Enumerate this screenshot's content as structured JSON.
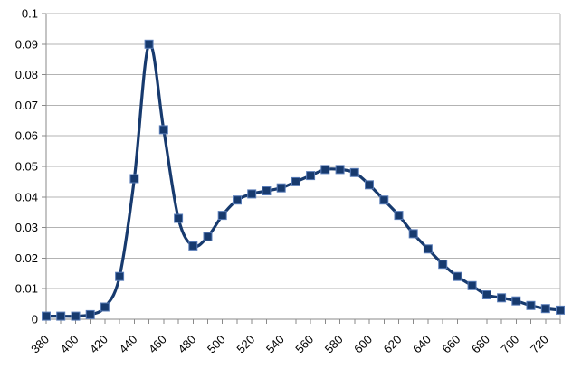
{
  "chart": {
    "background_color": "#ffffff",
    "series_color": "#173a6e",
    "marker_border_color": "#5a7db8",
    "gridline_color": "#b3b3b3",
    "axis_color": "#8a8a8a",
    "text_color": "#000000"
  },
  "chart_data": {
    "type": "line",
    "title": "",
    "xlabel": "",
    "ylabel": "",
    "legend": "none",
    "grid": true,
    "marker": "square",
    "smooth": true,
    "xlim": [
      380,
      730
    ],
    "ylim": [
      0,
      0.1
    ],
    "x": [
      380,
      390,
      400,
      410,
      420,
      430,
      440,
      450,
      460,
      470,
      480,
      490,
      500,
      510,
      520,
      530,
      540,
      550,
      560,
      570,
      580,
      590,
      600,
      610,
      620,
      630,
      640,
      650,
      660,
      670,
      680,
      690,
      700,
      710,
      720,
      730
    ],
    "values": [
      0.001,
      0.001,
      0.001,
      0.0015,
      0.004,
      0.014,
      0.046,
      0.09,
      0.062,
      0.033,
      0.024,
      0.027,
      0.034,
      0.039,
      0.041,
      0.042,
      0.043,
      0.045,
      0.047,
      0.049,
      0.049,
      0.048,
      0.044,
      0.039,
      0.034,
      0.028,
      0.023,
      0.018,
      0.014,
      0.011,
      0.008,
      0.007,
      0.006,
      0.0045,
      0.0035,
      0.003
    ],
    "x_tick_interval_minor": 10,
    "x_tick_labels": [
      "380",
      "400",
      "420",
      "440",
      "460",
      "480",
      "500",
      "520",
      "540",
      "560",
      "580",
      "600",
      "620",
      "640",
      "660",
      "680",
      "700",
      "720"
    ],
    "x_tick_label_start": 380,
    "x_tick_label_step": 20,
    "x_tick_label_rotation": -45,
    "y_tick_labels": [
      "0",
      "0.01",
      "0.02",
      "0.03",
      "0.04",
      "0.05",
      "0.06",
      "0.07",
      "0.08",
      "0.09",
      "0.1"
    ]
  }
}
